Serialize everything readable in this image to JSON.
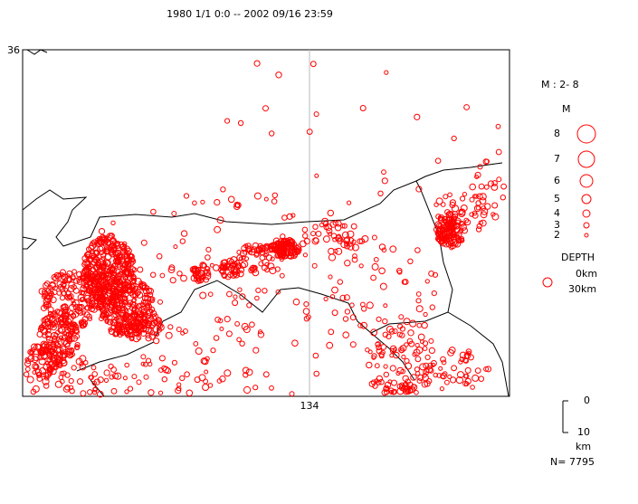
{
  "header": {
    "title": "1980 1/1 0:0 -- 2002 09/16 23:59"
  },
  "map": {
    "lat_label": "36",
    "lon_label": "134"
  },
  "legend": {
    "magnitude_title": "M : 2- 8",
    "magnitude_axis": "M",
    "magnitudes": [
      "8",
      "7",
      "6",
      "5",
      "4",
      "3",
      "2"
    ],
    "depth_title": "DEPTH",
    "depth_labels": [
      "0km",
      "30km"
    ]
  },
  "scale": {
    "top": "0",
    "bottom": "10",
    "unit": "km"
  },
  "count": "N= 7795"
}
